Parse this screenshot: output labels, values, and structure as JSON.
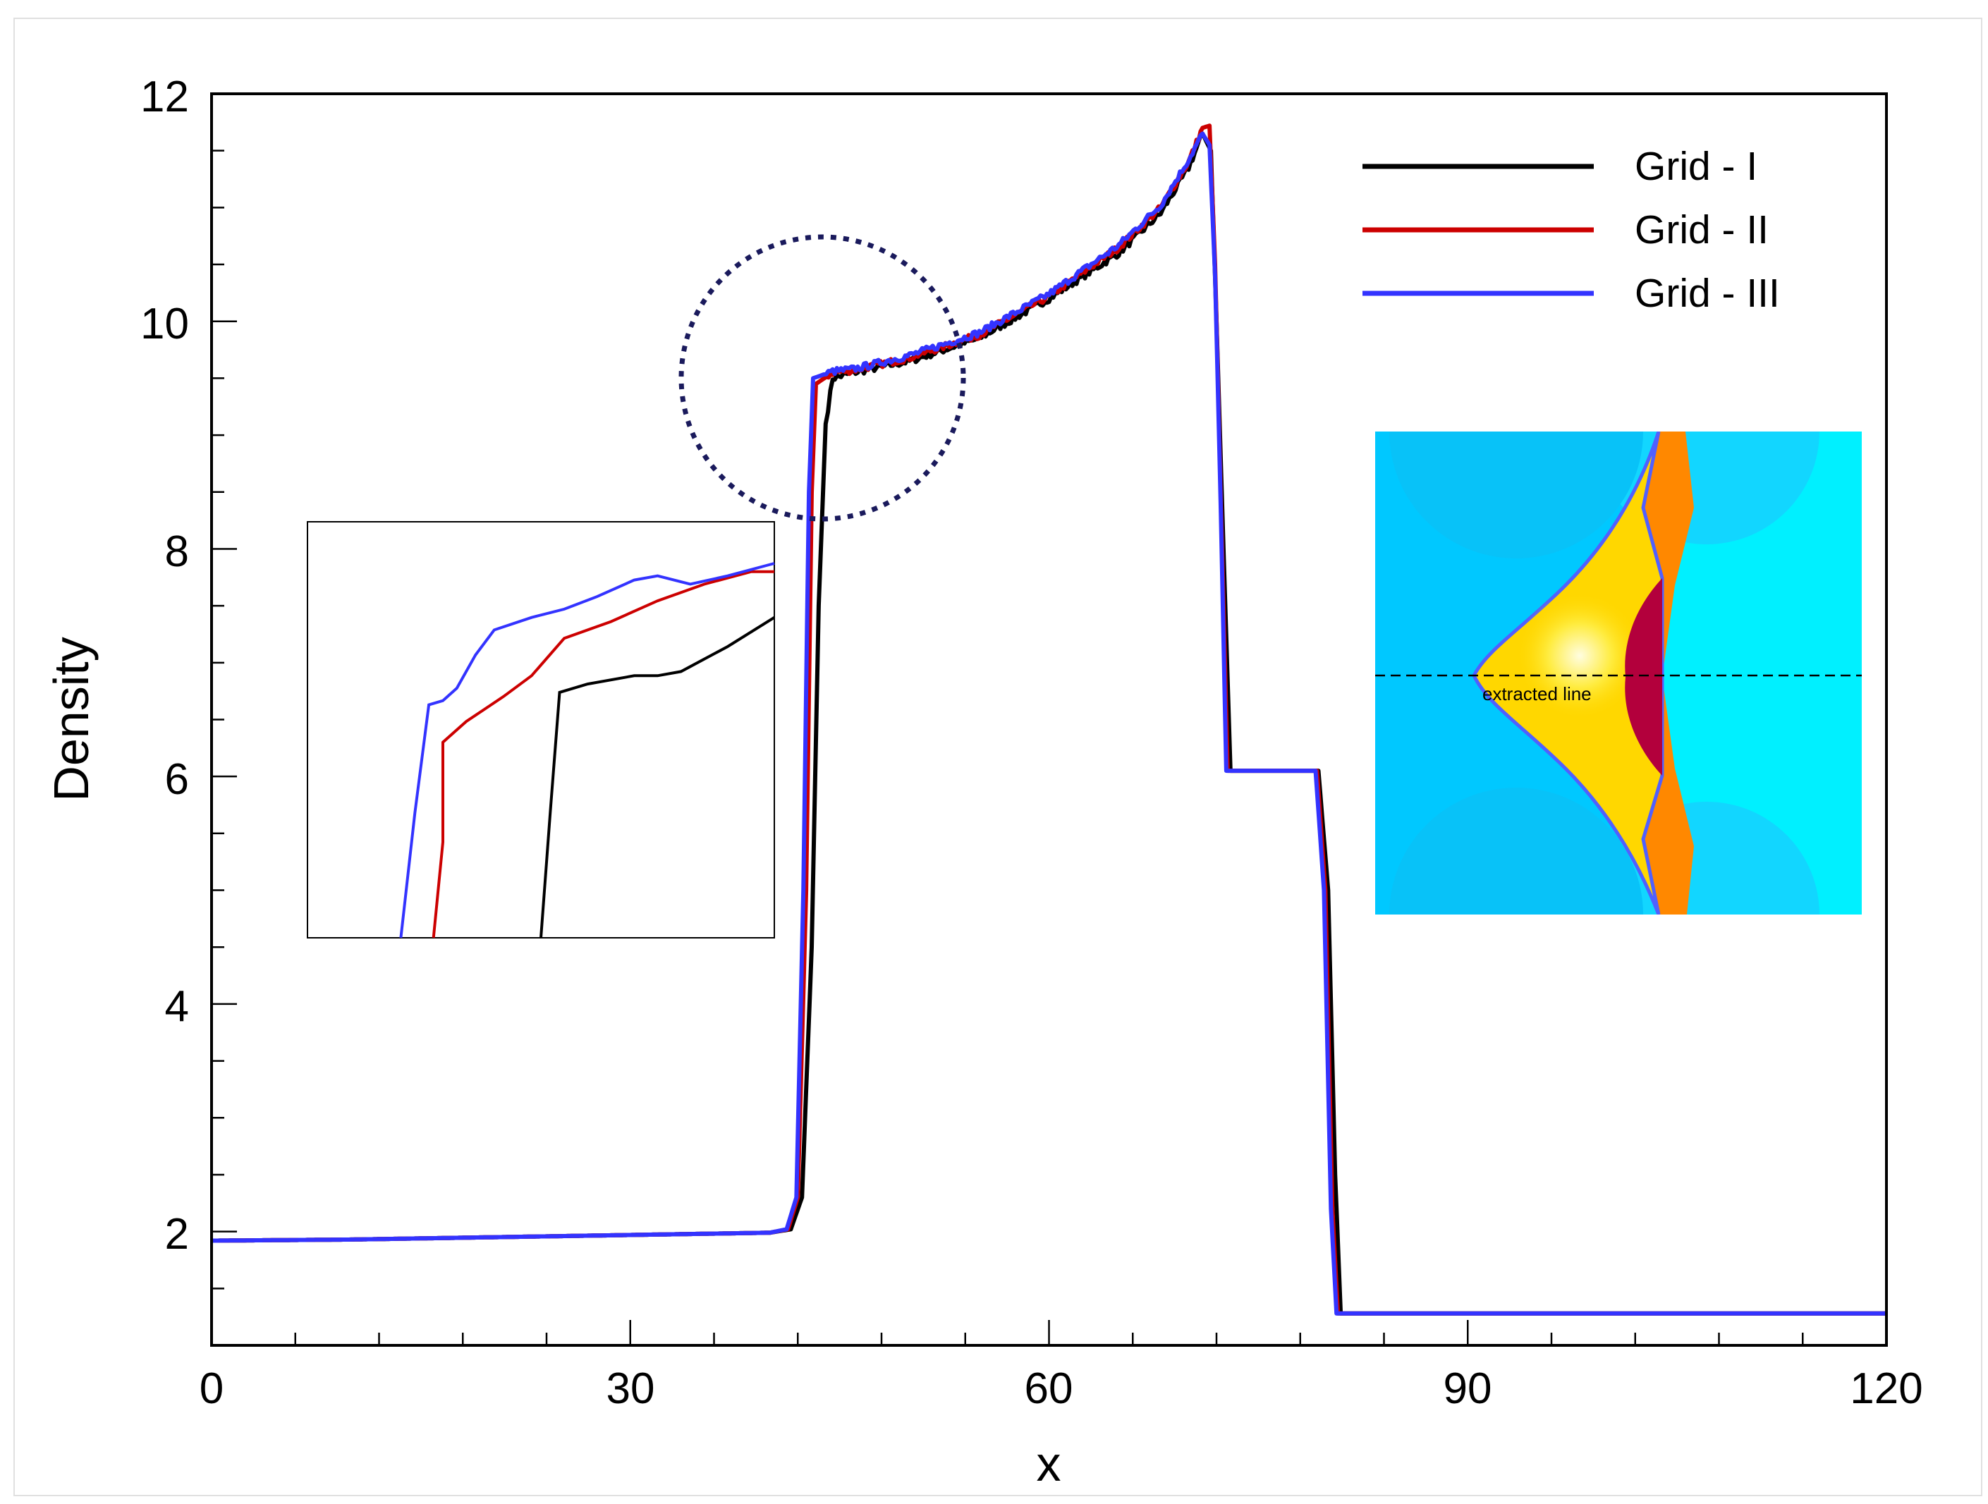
{
  "chart_data": {
    "type": "line",
    "xlabel": "x",
    "ylabel": "Density",
    "xlim": [
      0,
      120
    ],
    "ylim": [
      1.0,
      12.0
    ],
    "x_ticks": [
      0,
      30,
      60,
      90,
      120
    ],
    "y_ticks": [
      2,
      4,
      6,
      8,
      10,
      12
    ],
    "x_tick_labels": [
      "0",
      "30",
      "60",
      "90",
      "120"
    ],
    "y_tick_labels": [
      "2",
      "4",
      "6",
      "8",
      "10",
      "12"
    ],
    "grid": false,
    "legend_position": "top-right",
    "series": [
      {
        "name": "Grid - I",
        "color": "#000000",
        "points": [
          [
            0,
            1.92
          ],
          [
            10,
            1.93
          ],
          [
            20,
            1.95
          ],
          [
            30,
            1.97
          ],
          [
            40,
            1.99
          ],
          [
            41.5,
            2.02
          ],
          [
            42.3,
            2.3
          ],
          [
            43.0,
            4.5
          ],
          [
            43.5,
            7.5
          ],
          [
            44.0,
            9.1
          ],
          [
            44.5,
            9.5
          ],
          [
            46,
            9.55
          ],
          [
            50,
            9.65
          ],
          [
            55,
            9.85
          ],
          [
            60,
            10.2
          ],
          [
            65,
            10.6
          ],
          [
            68,
            10.95
          ],
          [
            70,
            11.35
          ],
          [
            71,
            11.65
          ],
          [
            71.6,
            11.5
          ],
          [
            72.0,
            10.0
          ],
          [
            72.5,
            8.0
          ],
          [
            73.0,
            6.05
          ],
          [
            76,
            6.05
          ],
          [
            79.3,
            6.05
          ],
          [
            80.0,
            5.0
          ],
          [
            80.5,
            2.5
          ],
          [
            80.9,
            1.28
          ],
          [
            120,
            1.28
          ]
        ]
      },
      {
        "name": "Grid - II",
        "color": "#cc0000",
        "points": [
          [
            0,
            1.92
          ],
          [
            10,
            1.93
          ],
          [
            20,
            1.95
          ],
          [
            30,
            1.97
          ],
          [
            40,
            1.99
          ],
          [
            41.3,
            2.02
          ],
          [
            42.0,
            2.3
          ],
          [
            42.6,
            5.0
          ],
          [
            43.0,
            8.5
          ],
          [
            43.3,
            9.45
          ],
          [
            44.5,
            9.55
          ],
          [
            46,
            9.57
          ],
          [
            50,
            9.68
          ],
          [
            55,
            9.88
          ],
          [
            60,
            10.22
          ],
          [
            65,
            10.65
          ],
          [
            68,
            11.0
          ],
          [
            70,
            11.4
          ],
          [
            71.0,
            11.7
          ],
          [
            71.5,
            11.72
          ],
          [
            71.9,
            10.5
          ],
          [
            72.3,
            8.5
          ],
          [
            72.8,
            6.05
          ],
          [
            76,
            6.05
          ],
          [
            79.2,
            6.05
          ],
          [
            79.8,
            5.0
          ],
          [
            80.3,
            2.2
          ],
          [
            80.7,
            1.28
          ],
          [
            120,
            1.28
          ]
        ]
      },
      {
        "name": "Grid - III",
        "color": "#3333ff",
        "points": [
          [
            0,
            1.92
          ],
          [
            10,
            1.93
          ],
          [
            20,
            1.95
          ],
          [
            30,
            1.97
          ],
          [
            40,
            1.99
          ],
          [
            41.2,
            2.02
          ],
          [
            41.9,
            2.3
          ],
          [
            42.4,
            5.0
          ],
          [
            42.8,
            8.5
          ],
          [
            43.1,
            9.5
          ],
          [
            44.5,
            9.56
          ],
          [
            46,
            9.58
          ],
          [
            50,
            9.7
          ],
          [
            55,
            9.9
          ],
          [
            60,
            10.24
          ],
          [
            65,
            10.67
          ],
          [
            68,
            11.02
          ],
          [
            70,
            11.42
          ],
          [
            71.0,
            11.65
          ],
          [
            71.5,
            11.55
          ],
          [
            71.9,
            10.4
          ],
          [
            72.3,
            8.4
          ],
          [
            72.7,
            6.05
          ],
          [
            76,
            6.05
          ],
          [
            79.1,
            6.05
          ],
          [
            79.7,
            5.0
          ],
          [
            80.2,
            2.2
          ],
          [
            80.6,
            1.28
          ],
          [
            120,
            1.28
          ]
        ]
      }
    ],
    "zoom_inset": {
      "series": [
        {
          "name": "Grid - I",
          "color": "#000000",
          "points": [
            [
              0.5,
              0.0
            ],
            [
              0.52,
              0.3
            ],
            [
              0.54,
              0.59
            ],
            [
              0.6,
              0.61
            ],
            [
              0.7,
              0.63
            ],
            [
              0.75,
              0.63
            ],
            [
              0.8,
              0.64
            ],
            [
              0.9,
              0.7
            ],
            [
              1.0,
              0.77
            ]
          ]
        },
        {
          "name": "Grid - II",
          "color": "#cc0000",
          "points": [
            [
              0.27,
              0.0
            ],
            [
              0.29,
              0.23
            ],
            [
              0.29,
              0.47
            ],
            [
              0.34,
              0.52
            ],
            [
              0.38,
              0.55
            ],
            [
              0.42,
              0.58
            ],
            [
              0.48,
              0.63
            ],
            [
              0.55,
              0.72
            ],
            [
              0.65,
              0.76
            ],
            [
              0.75,
              0.81
            ],
            [
              0.85,
              0.85
            ],
            [
              0.95,
              0.88
            ],
            [
              1.0,
              0.88
            ]
          ]
        },
        {
          "name": "Grid - III",
          "color": "#3333ff",
          "points": [
            [
              0.2,
              0.0
            ],
            [
              0.23,
              0.3
            ],
            [
              0.26,
              0.56
            ],
            [
              0.29,
              0.57
            ],
            [
              0.32,
              0.6
            ],
            [
              0.36,
              0.68
            ],
            [
              0.4,
              0.74
            ],
            [
              0.48,
              0.77
            ],
            [
              0.55,
              0.79
            ],
            [
              0.62,
              0.82
            ],
            [
              0.7,
              0.86
            ],
            [
              0.75,
              0.87
            ],
            [
              0.82,
              0.85
            ],
            [
              0.9,
              0.87
            ],
            [
              1.0,
              0.9
            ]
          ]
        }
      ]
    },
    "annotation": "extracted line"
  },
  "colors": {
    "circle": "#1a1a5c",
    "contour_outer_left": "#00c8ff",
    "contour_outer_right": "#00f0ff",
    "contour_yellow": "#ffd700",
    "contour_orange": "#ff8800",
    "contour_crimson": "#b3003c"
  }
}
